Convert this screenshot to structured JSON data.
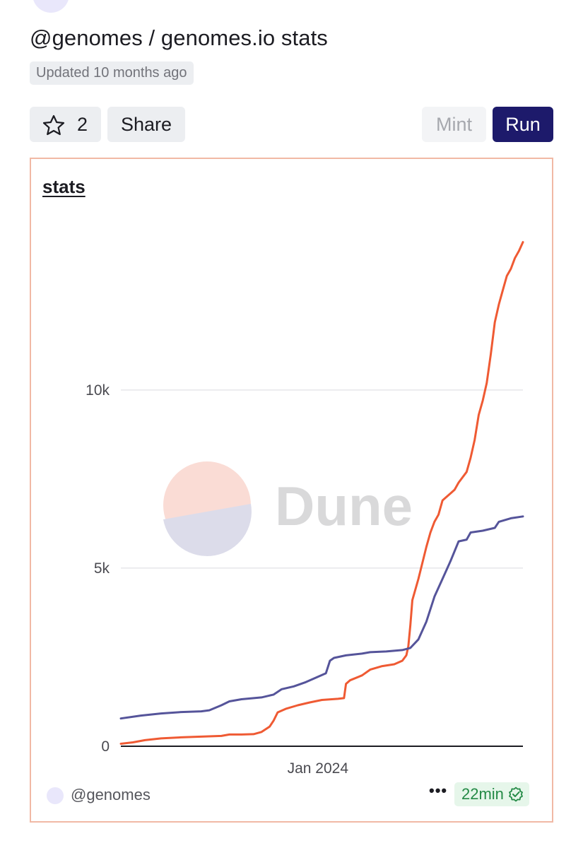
{
  "header": {
    "title": "@genomes / genomes.io stats",
    "updated": "Updated 10 months ago"
  },
  "toolbar": {
    "star_count": "2",
    "share_label": "Share",
    "mint_label": "Mint",
    "run_label": "Run"
  },
  "chart_card": {
    "title": "stats",
    "watermark": "Dune",
    "owner": "@genomes",
    "more_label": "•••",
    "freshness": "22min"
  },
  "colors": {
    "series_a": "#ef5a33",
    "series_b": "#55549a",
    "run_button": "#1d1a6b",
    "card_border": "#f1b9a5"
  },
  "chart_data": {
    "type": "line",
    "xlabel": "",
    "ylabel": "",
    "x_ticks": [
      {
        "label": "Jan 2024",
        "x": 0.49
      }
    ],
    "y_ticks": [
      {
        "label": "0",
        "value": 0
      },
      {
        "label": "5k",
        "value": 5000
      },
      {
        "label": "10k",
        "value": 10000
      }
    ],
    "ylim": [
      0,
      14500
    ],
    "xlim": [
      0,
      1
    ],
    "grid": true,
    "legend": "none",
    "series": [
      {
        "color": "#ef5a33",
        "points": [
          [
            0,
            70
          ],
          [
            0.03,
            110
          ],
          [
            0.06,
            170
          ],
          [
            0.1,
            220
          ],
          [
            0.15,
            250
          ],
          [
            0.2,
            270
          ],
          [
            0.25,
            290
          ],
          [
            0.27,
            330
          ],
          [
            0.3,
            330
          ],
          [
            0.33,
            340
          ],
          [
            0.35,
            400
          ],
          [
            0.37,
            550
          ],
          [
            0.38,
            720
          ],
          [
            0.39,
            950
          ],
          [
            0.41,
            1050
          ],
          [
            0.44,
            1150
          ],
          [
            0.47,
            1230
          ],
          [
            0.5,
            1300
          ],
          [
            0.54,
            1330
          ],
          [
            0.555,
            1350
          ],
          [
            0.56,
            1750
          ],
          [
            0.57,
            1850
          ],
          [
            0.6,
            1990
          ],
          [
            0.62,
            2150
          ],
          [
            0.65,
            2250
          ],
          [
            0.68,
            2300
          ],
          [
            0.7,
            2400
          ],
          [
            0.71,
            2550
          ],
          [
            0.715,
            2800
          ],
          [
            0.72,
            3400
          ],
          [
            0.725,
            4100
          ],
          [
            0.74,
            4700
          ],
          [
            0.76,
            5600
          ],
          [
            0.77,
            6000
          ],
          [
            0.78,
            6300
          ],
          [
            0.79,
            6500
          ],
          [
            0.8,
            6900
          ],
          [
            0.82,
            7100
          ],
          [
            0.83,
            7200
          ],
          [
            0.84,
            7400
          ],
          [
            0.86,
            7700
          ],
          [
            0.87,
            8100
          ],
          [
            0.88,
            8600
          ],
          [
            0.89,
            9300
          ],
          [
            0.9,
            9700
          ],
          [
            0.91,
            10200
          ],
          [
            0.92,
            11000
          ],
          [
            0.93,
            11900
          ],
          [
            0.94,
            12400
          ],
          [
            0.95,
            12800
          ],
          [
            0.96,
            13200
          ],
          [
            0.97,
            13400
          ],
          [
            0.98,
            13700
          ],
          [
            0.99,
            13900
          ],
          [
            1,
            14150
          ]
        ]
      },
      {
        "color": "#55549a",
        "points": [
          [
            0,
            780
          ],
          [
            0.05,
            860
          ],
          [
            0.1,
            920
          ],
          [
            0.15,
            960
          ],
          [
            0.2,
            980
          ],
          [
            0.22,
            1010
          ],
          [
            0.25,
            1150
          ],
          [
            0.27,
            1260
          ],
          [
            0.3,
            1320
          ],
          [
            0.35,
            1370
          ],
          [
            0.38,
            1450
          ],
          [
            0.4,
            1600
          ],
          [
            0.43,
            1680
          ],
          [
            0.46,
            1800
          ],
          [
            0.49,
            1950
          ],
          [
            0.51,
            2050
          ],
          [
            0.52,
            2400
          ],
          [
            0.53,
            2480
          ],
          [
            0.56,
            2550
          ],
          [
            0.6,
            2600
          ],
          [
            0.62,
            2640
          ],
          [
            0.66,
            2660
          ],
          [
            0.7,
            2700
          ],
          [
            0.72,
            2760
          ],
          [
            0.74,
            3000
          ],
          [
            0.76,
            3500
          ],
          [
            0.78,
            4200
          ],
          [
            0.8,
            4700
          ],
          [
            0.82,
            5200
          ],
          [
            0.84,
            5750
          ],
          [
            0.86,
            5800
          ],
          [
            0.87,
            6000
          ],
          [
            0.9,
            6050
          ],
          [
            0.93,
            6130
          ],
          [
            0.94,
            6300
          ],
          [
            0.97,
            6400
          ],
          [
            1,
            6450
          ]
        ]
      }
    ]
  }
}
